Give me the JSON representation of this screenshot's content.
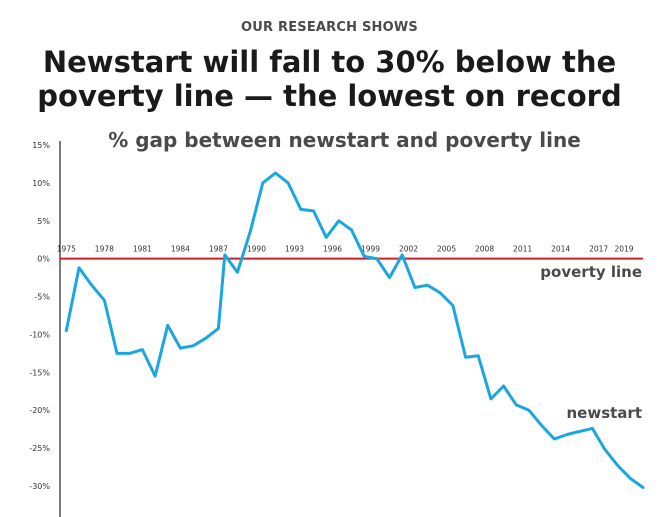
{
  "header": {
    "kicker": "OUR RESEARCH SHOWS",
    "title_line1": "Newstart will fall to 30% below the",
    "title_line2": "poverty line — the lowest on record"
  },
  "chart_data": {
    "type": "line",
    "title": "% gap between newstart and poverty line",
    "xlabel": "",
    "ylabel": "",
    "xlim": [
      1974.5,
      2020.5
    ],
    "ylim": [
      -30,
      15
    ],
    "y_ticks": [
      15,
      10,
      5,
      0,
      -5,
      -10,
      -15,
      -20,
      -25,
      -30
    ],
    "y_tick_labels": [
      "15%",
      "10%",
      "5%",
      "0%",
      "-5%",
      "-10%",
      "-15%",
      "-20%",
      "-25%",
      "-30%"
    ],
    "x_ticks": [
      1975,
      1978,
      1981,
      1984,
      1987,
      1990,
      1993,
      1996,
      1999,
      2002,
      2005,
      2008,
      2011,
      2014,
      2017,
      2019
    ],
    "x_tick_labels": [
      "1975",
      "1978",
      "1981",
      "1984",
      "1987",
      "1990",
      "1993",
      "1996",
      "1999",
      "2002",
      "2005",
      "2008",
      "2011",
      "2014",
      "2017",
      "2019"
    ],
    "reference_line": {
      "name": "poverty line",
      "value": 0,
      "color": "#cc1f2b"
    },
    "series": [
      {
        "name": "newstart",
        "color": "#1aa7e0",
        "x": [
          1975,
          1976,
          1977,
          1978,
          1979,
          1980,
          1981,
          1982,
          1983,
          1984,
          1985,
          1986,
          1987,
          1987.5,
          1988.5,
          1989.5,
          1990.5,
          1991.5,
          1992.5,
          1993.5,
          1994.5,
          1995.5,
          1996.5,
          1997.5,
          1998.5,
          1999.5,
          2000.5,
          2001.5,
          2002.5,
          2003.5,
          2004.5,
          2005.5,
          2006.5,
          2007.5,
          2008.5,
          2009.5,
          2010.5,
          2011.5,
          2012.5,
          2013.5,
          2014.5,
          2015.5,
          2016.5,
          2017.5,
          2018.5,
          2019.5,
          2020.5
        ],
        "values": [
          -9.5,
          -1.2,
          -3.5,
          -5.5,
          -12.5,
          -12.5,
          -12.0,
          -15.5,
          -8.8,
          -11.8,
          -11.5,
          -10.5,
          -9.2,
          0.5,
          -1.8,
          3.5,
          10.0,
          11.3,
          10.0,
          6.5,
          6.3,
          2.8,
          5.0,
          3.8,
          0.3,
          0.0,
          -2.5,
          0.5,
          -3.8,
          -3.5,
          -4.5,
          -6.2,
          -13.0,
          -12.8,
          -18.5,
          -16.8,
          -19.3,
          -20.0,
          -22.0,
          -23.8,
          -23.2,
          -22.8,
          -22.4,
          -25.2,
          -27.3,
          -29.0,
          -30.2
        ]
      }
    ],
    "annotations": [
      "poverty line",
      "newstart"
    ],
    "grid": false,
    "legend": "none"
  }
}
